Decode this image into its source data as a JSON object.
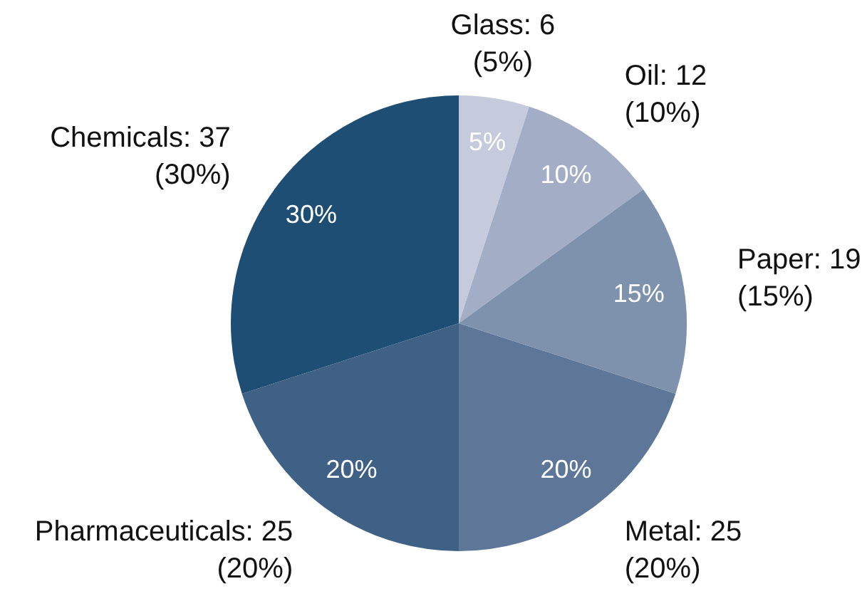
{
  "chart_data": {
    "type": "pie",
    "categories": [
      "Glass: 6\n(5%)",
      "Oil: 12\n(10%)",
      "Paper: 19\n(15%)",
      "Metal: 25\n(20%)",
      "Pharmaceuticals: 25\n(20%)",
      "Chemicals: 37\n(30%)"
    ],
    "values": [
      5,
      10,
      15,
      20,
      20,
      30
    ],
    "value_labels": [
      "5%",
      "10%",
      "15%",
      "20%",
      "20%",
      "30%"
    ],
    "colors": [
      "#c5cbdc",
      "#a3adc6",
      "#7f92ad",
      "#5e7799",
      "#3e6185",
      "#1f4e75"
    ],
    "legend": false
  }
}
